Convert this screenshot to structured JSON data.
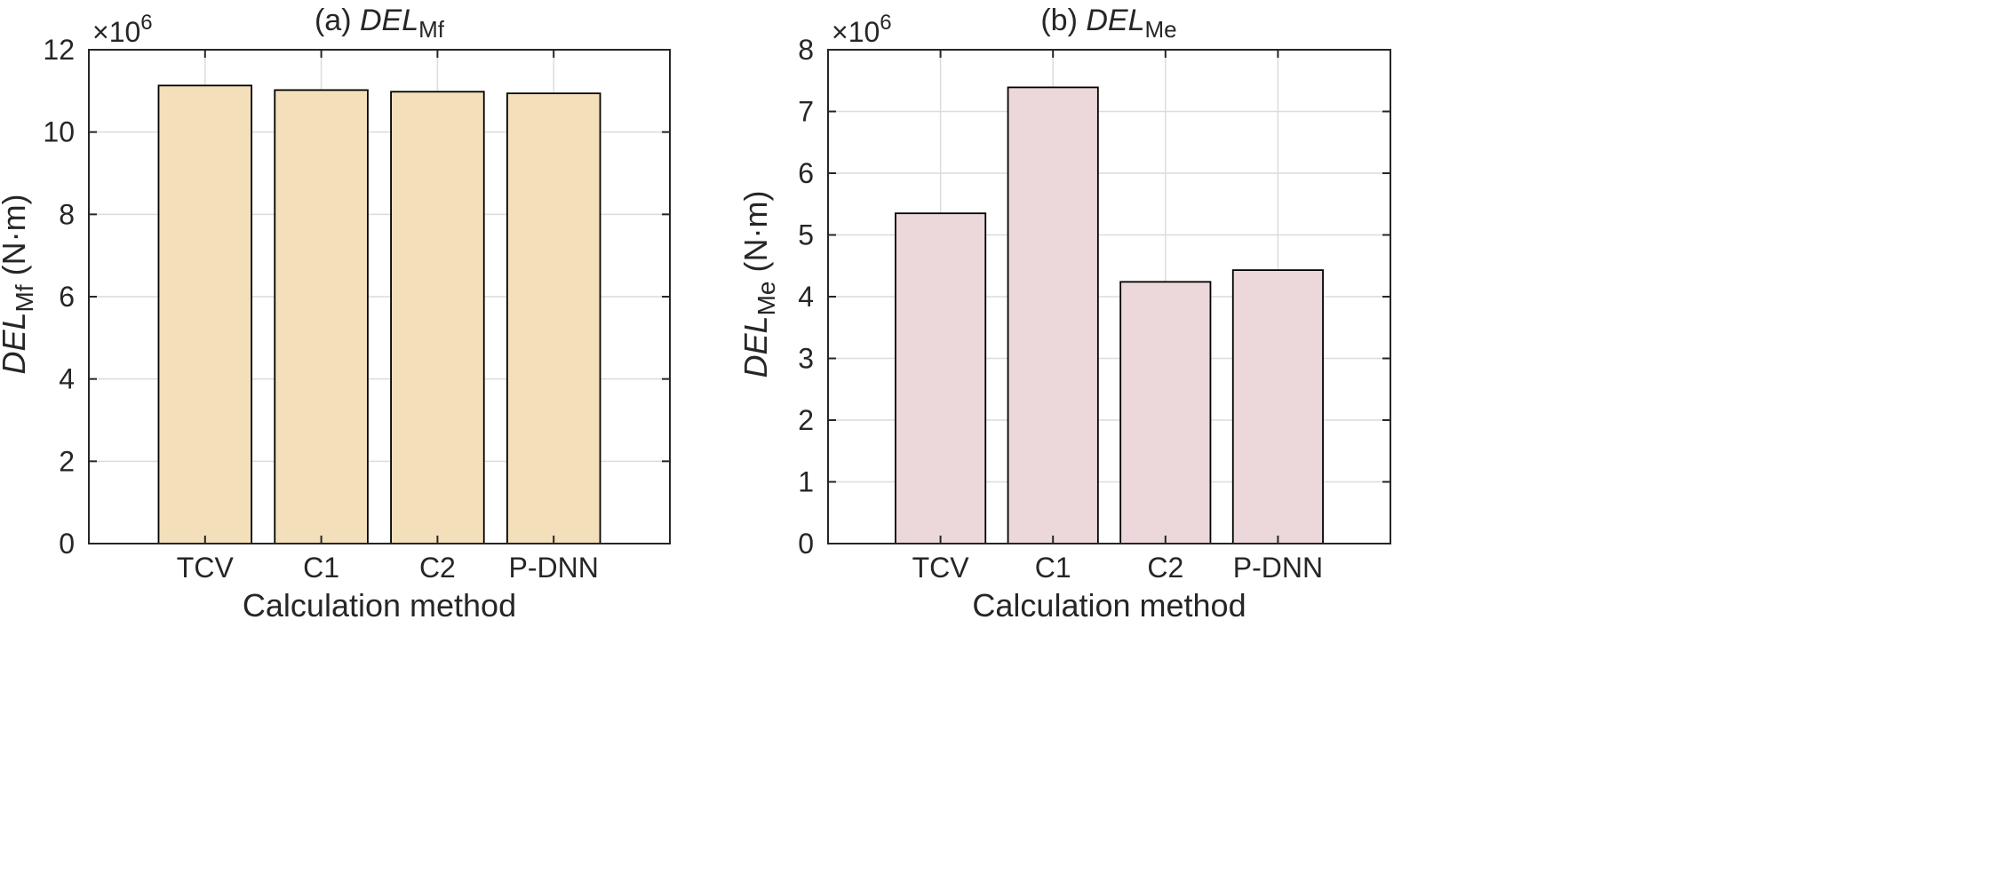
{
  "chart_data": [
    {
      "type": "bar",
      "title": {
        "prefix": "(a) ",
        "main": "DEL",
        "sub": "Mf"
      },
      "ylabel": {
        "main": "DEL",
        "sub": "Mf",
        "unit": " (N·m)"
      },
      "xlabel": "Calculation method",
      "exponent_label": {
        "base": "×10",
        "power": "6"
      },
      "categories": [
        "TCV",
        "C1",
        "C2",
        "P-DNN"
      ],
      "values": [
        11.13,
        11.02,
        10.98,
        10.94
      ],
      "multiplier": 1000000,
      "ylim": [
        0,
        12
      ],
      "yticks": [
        "0",
        "2",
        "4",
        "6",
        "8",
        "10",
        "12"
      ],
      "grid": true,
      "bar_color": "#f3dfb9"
    },
    {
      "type": "bar",
      "title": {
        "prefix": "(b) ",
        "main": "DEL",
        "sub": "Me"
      },
      "ylabel": {
        "main": "DEL",
        "sub": "Me",
        "unit": " (N·m)"
      },
      "xlabel": "Calculation method",
      "exponent_label": {
        "base": "×10",
        "power": "6"
      },
      "categories": [
        "TCV",
        "C1",
        "C2",
        "P-DNN"
      ],
      "values": [
        5.35,
        7.39,
        4.24,
        4.43
      ],
      "multiplier": 1000000,
      "ylim": [
        0,
        8
      ],
      "yticks": [
        "0",
        "1",
        "2",
        "3",
        "4",
        "5",
        "6",
        "7",
        "8"
      ],
      "grid": true,
      "bar_color": "#ecd7da"
    }
  ]
}
